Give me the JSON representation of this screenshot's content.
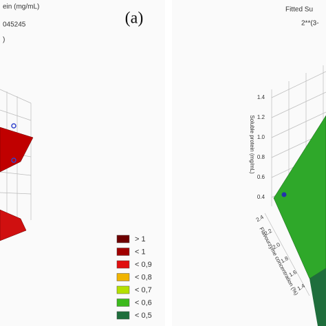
{
  "panels": [
    {
      "label": "(a)",
      "title_lines": [
        "ein (mg/mL)",
        "045245",
        ")"
      ]
    },
    {
      "title_lines": [
        "Fitted Su",
        "2**(3-"
      ],
      "z_axis_title": "Soluble protein (mg/mL)",
      "z_ticks": [
        "1.4",
        "1.2",
        "1.0",
        "0.8",
        "0.6",
        "0.4"
      ],
      "x_axis_title": "Flavourzyme concentration (%)",
      "x_ticks": [
        "2.4",
        "2.2",
        "2.0",
        "1.8",
        "1.6",
        "1.4"
      ]
    }
  ],
  "legend": [
    {
      "label": "> 1",
      "color": "#6e0000"
    },
    {
      "label": "< 1",
      "color": "#a00000"
    },
    {
      "label": "< 0,9",
      "color": "#e01010"
    },
    {
      "label": "< 0,8",
      "color": "#f0b400"
    },
    {
      "label": "< 0,7",
      "color": "#b4e000"
    },
    {
      "label": "< 0,6",
      "color": "#3cba1c"
    },
    {
      "label": "< 0,5",
      "color": "#1f6e3c"
    }
  ]
}
